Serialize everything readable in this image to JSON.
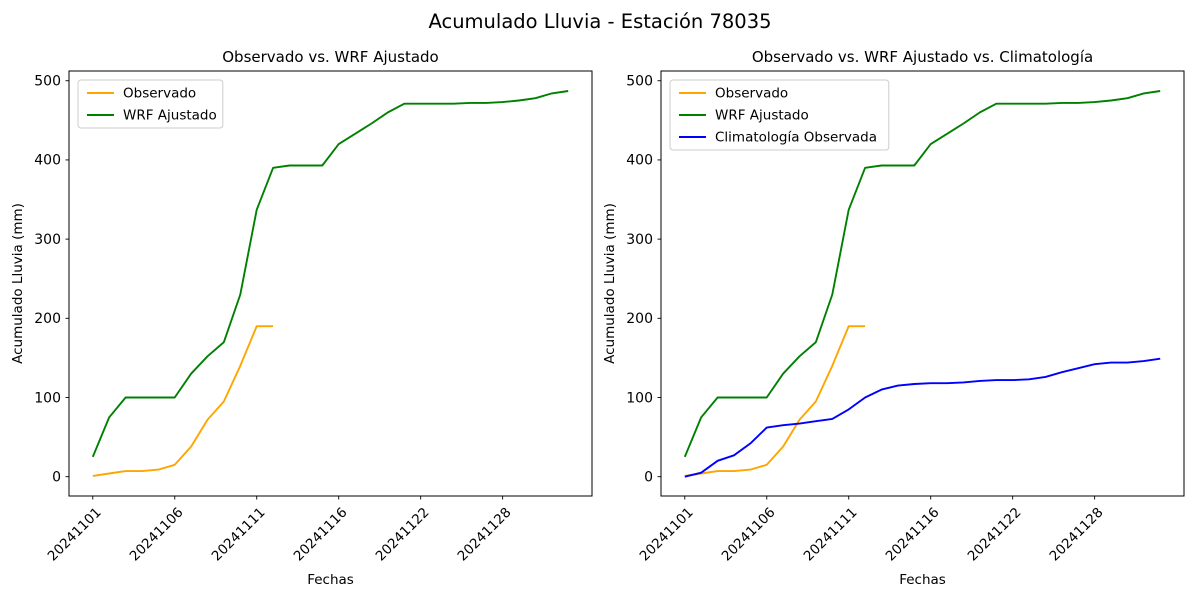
{
  "figure": {
    "title": "Acumulado Lluvia - Estación 78035",
    "background_color": "#ffffff",
    "text_color": "#000000"
  },
  "chart_data": [
    {
      "type": "line",
      "title": "Observado vs. WRF Ajustado",
      "xlabel": "Fechas",
      "ylabel": "Acumulado Lluvia (mm)",
      "grid": false,
      "legend_position": "upper-left",
      "n_points": 30,
      "xlim": [
        -1.45,
        30.45
      ],
      "ylim": [
        -24.4,
        512.3
      ],
      "y_ticks": [
        0,
        100,
        200,
        300,
        400,
        500
      ],
      "x_tick_indices": [
        0,
        5,
        10,
        15,
        20,
        25
      ],
      "x_tick_labels": [
        "20241101",
        "20241106",
        "20241111",
        "20241116",
        "20241122",
        "20241128"
      ],
      "series": [
        {
          "name": "Observado",
          "color": "#FFA500",
          "values": [
            1,
            4,
            7,
            7,
            9,
            15,
            38,
            72,
            95,
            140,
            190,
            190
          ]
        },
        {
          "name": "WRF Ajustado",
          "color": "#008000",
          "values": [
            25,
            75,
            100,
            100,
            100,
            100,
            130,
            152,
            170,
            230,
            337,
            390,
            393,
            393,
            393,
            420,
            433,
            446,
            460,
            471,
            471,
            471,
            471,
            472,
            472,
            473,
            475,
            478,
            484,
            487
          ]
        }
      ]
    },
    {
      "type": "line",
      "title": "Observado vs. WRF Ajustado vs. Climatología",
      "xlabel": "Fechas",
      "ylabel": "Acumulado Lluvia (mm)",
      "grid": false,
      "legend_position": "upper-left",
      "n_points": 30,
      "xlim": [
        -1.45,
        30.45
      ],
      "ylim": [
        -24.4,
        512.3
      ],
      "y_ticks": [
        0,
        100,
        200,
        300,
        400,
        500
      ],
      "x_tick_indices": [
        0,
        5,
        10,
        15,
        20,
        25
      ],
      "x_tick_labels": [
        "20241101",
        "20241106",
        "20241111",
        "20241116",
        "20241122",
        "20241128"
      ],
      "series": [
        {
          "name": "Observado",
          "color": "#FFA500",
          "values": [
            1,
            4,
            7,
            7,
            9,
            15,
            38,
            72,
            95,
            140,
            190,
            190
          ]
        },
        {
          "name": "WRF Ajustado",
          "color": "#008000",
          "values": [
            25,
            75,
            100,
            100,
            100,
            100,
            130,
            152,
            170,
            230,
            337,
            390,
            393,
            393,
            393,
            420,
            433,
            446,
            460,
            471,
            471,
            471,
            471,
            472,
            472,
            473,
            475,
            478,
            484,
            487
          ]
        },
        {
          "name": "Climatología Observada",
          "color": "#0000FF",
          "values": [
            0,
            5,
            20,
            27,
            42,
            62,
            65,
            67,
            70,
            73,
            85,
            100,
            110,
            115,
            117,
            118,
            118,
            119,
            121,
            122,
            122,
            123,
            126,
            132,
            137,
            142,
            144,
            144,
            146,
            149
          ]
        }
      ]
    }
  ]
}
